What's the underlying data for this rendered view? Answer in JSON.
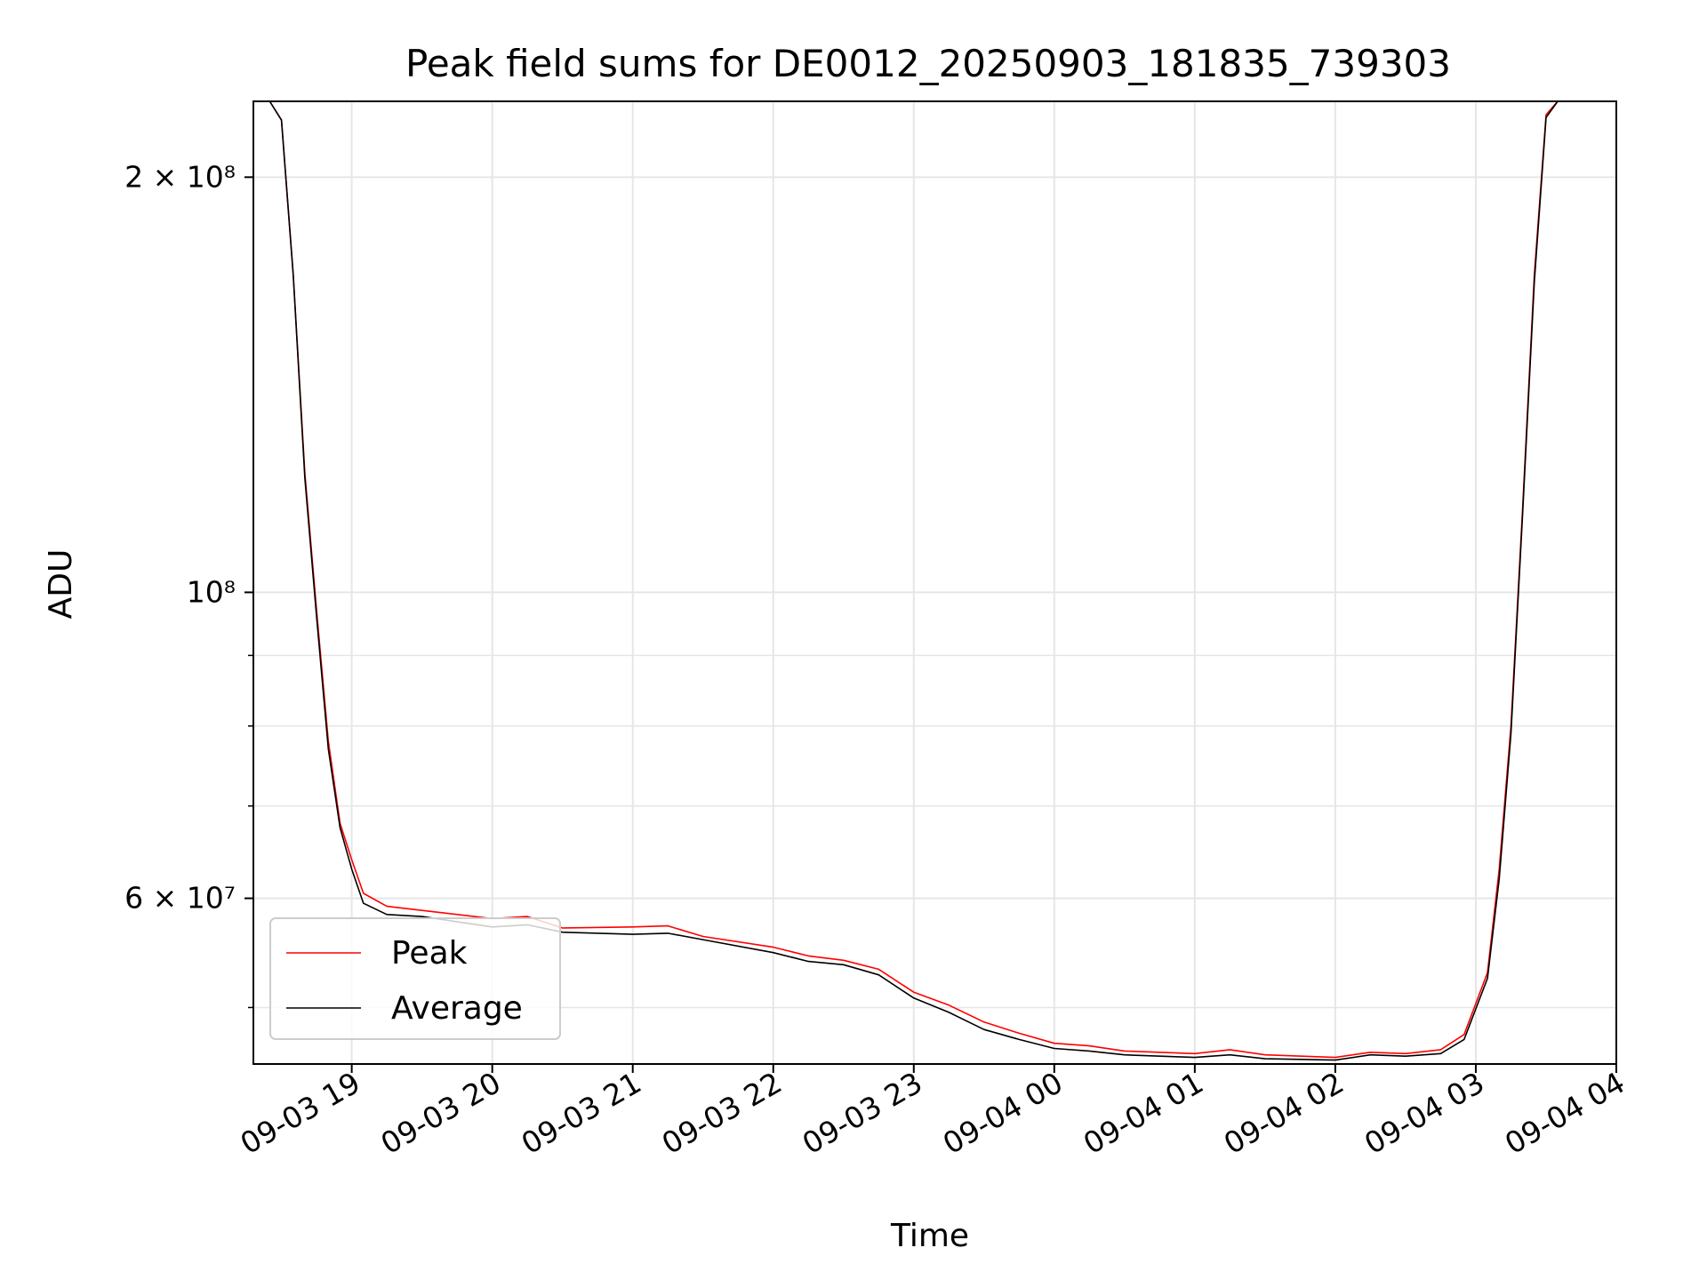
{
  "colors": {
    "peak": "#ff0000",
    "average": "#000000",
    "grid": "#e6e6e6",
    "axis": "#000000",
    "legend_border": "#cccccc"
  },
  "chart_data": {
    "type": "line",
    "title": "Peak field sums for DE0012_20250903_181835_739303",
    "xlabel": "Time",
    "ylabel": "ADU",
    "yscale": "log",
    "xlim": [
      "2025-09-03 18:18",
      "2025-09-04 04:00"
    ],
    "ylim": [
      45500000,
      227000000
    ],
    "grid": true,
    "legend_position": "lower-left",
    "x_ticks": [
      {
        "t": "2025-09-03 19:00",
        "label": "09-03 19"
      },
      {
        "t": "2025-09-03 20:00",
        "label": "09-03 20"
      },
      {
        "t": "2025-09-03 21:00",
        "label": "09-03 21"
      },
      {
        "t": "2025-09-03 22:00",
        "label": "09-03 22"
      },
      {
        "t": "2025-09-03 23:00",
        "label": "09-03 23"
      },
      {
        "t": "2025-09-04 00:00",
        "label": "09-04 00"
      },
      {
        "t": "2025-09-04 01:00",
        "label": "09-04 01"
      },
      {
        "t": "2025-09-04 02:00",
        "label": "09-04 02"
      },
      {
        "t": "2025-09-04 03:00",
        "label": "09-04 03"
      },
      {
        "t": "2025-09-04 04:00",
        "label": "09-04 04"
      }
    ],
    "y_ticks": [
      {
        "value": 60000000,
        "label": "6 × 10⁷"
      },
      {
        "value": 100000000,
        "label": "10⁸"
      },
      {
        "value": 200000000,
        "label": "2 × 10⁸"
      }
    ],
    "y_minor_ticks": [
      50000000,
      70000000,
      80000000,
      90000000
    ],
    "series": [
      {
        "name": "Peak",
        "color": "#ff0000",
        "points": [
          [
            "2025-09-03 18:18",
            227000000
          ],
          [
            "2025-09-03 18:25",
            227000000
          ],
          [
            "2025-09-03 18:30",
            220000000
          ],
          [
            "2025-09-03 18:35",
            170000000
          ],
          [
            "2025-09-03 18:40",
            122000000
          ],
          [
            "2025-09-03 18:45",
            97000000
          ],
          [
            "2025-09-03 18:50",
            78000000
          ],
          [
            "2025-09-03 18:55",
            68000000
          ],
          [
            "2025-09-03 19:00",
            64000000
          ],
          [
            "2025-09-03 19:05",
            60500000
          ],
          [
            "2025-09-03 19:15",
            59200000
          ],
          [
            "2025-09-03 19:30",
            58800000
          ],
          [
            "2025-09-03 20:00",
            58000000
          ],
          [
            "2025-09-03 20:15",
            58200000
          ],
          [
            "2025-09-03 20:30",
            57100000
          ],
          [
            "2025-09-03 21:00",
            57200000
          ],
          [
            "2025-09-03 21:15",
            57300000
          ],
          [
            "2025-09-03 21:30",
            56300000
          ],
          [
            "2025-09-03 22:00",
            55300000
          ],
          [
            "2025-09-03 22:15",
            54500000
          ],
          [
            "2025-09-03 22:30",
            54100000
          ],
          [
            "2025-09-03 22:45",
            53300000
          ],
          [
            "2025-09-03 23:00",
            51300000
          ],
          [
            "2025-09-03 23:15",
            50200000
          ],
          [
            "2025-09-03 23:30",
            48800000
          ],
          [
            "2025-09-03 23:45",
            47900000
          ],
          [
            "2025-09-04 00:00",
            47100000
          ],
          [
            "2025-09-04 00:15",
            46900000
          ],
          [
            "2025-09-04 00:30",
            46500000
          ],
          [
            "2025-09-04 01:00",
            46300000
          ],
          [
            "2025-09-04 01:15",
            46600000
          ],
          [
            "2025-09-04 01:30",
            46200000
          ],
          [
            "2025-09-04 02:00",
            46000000
          ],
          [
            "2025-09-04 02:15",
            46400000
          ],
          [
            "2025-09-04 02:30",
            46300000
          ],
          [
            "2025-09-04 02:45",
            46600000
          ],
          [
            "2025-09-04 02:55",
            47800000
          ],
          [
            "2025-09-04 03:05",
            53000000
          ],
          [
            "2025-09-04 03:10",
            63000000
          ],
          [
            "2025-09-04 03:15",
            80000000
          ],
          [
            "2025-09-04 03:20",
            115000000
          ],
          [
            "2025-09-04 03:25",
            170000000
          ],
          [
            "2025-09-04 03:30",
            222000000
          ],
          [
            "2025-09-04 03:35",
            227000000
          ],
          [
            "2025-09-04 04:00",
            227000000
          ]
        ]
      },
      {
        "name": "Average",
        "color": "#000000",
        "points": [
          [
            "2025-09-03 18:18",
            227000000
          ],
          [
            "2025-09-03 18:25",
            227000000
          ],
          [
            "2025-09-03 18:30",
            220000000
          ],
          [
            "2025-09-03 18:35",
            170000000
          ],
          [
            "2025-09-03 18:40",
            121000000
          ],
          [
            "2025-09-03 18:45",
            96000000
          ],
          [
            "2025-09-03 18:50",
            77000000
          ],
          [
            "2025-09-03 18:55",
            67500000
          ],
          [
            "2025-09-03 19:00",
            63000000
          ],
          [
            "2025-09-03 19:05",
            59500000
          ],
          [
            "2025-09-03 19:15",
            58400000
          ],
          [
            "2025-09-03 19:30",
            58200000
          ],
          [
            "2025-09-03 20:00",
            57200000
          ],
          [
            "2025-09-03 20:15",
            57400000
          ],
          [
            "2025-09-03 20:30",
            56700000
          ],
          [
            "2025-09-03 21:00",
            56500000
          ],
          [
            "2025-09-03 21:15",
            56600000
          ],
          [
            "2025-09-03 21:30",
            56000000
          ],
          [
            "2025-09-03 22:00",
            54800000
          ],
          [
            "2025-09-03 22:15",
            54000000
          ],
          [
            "2025-09-03 22:30",
            53700000
          ],
          [
            "2025-09-03 22:45",
            52800000
          ],
          [
            "2025-09-03 23:00",
            50800000
          ],
          [
            "2025-09-03 23:15",
            49600000
          ],
          [
            "2025-09-03 23:30",
            48200000
          ],
          [
            "2025-09-03 23:45",
            47400000
          ],
          [
            "2025-09-04 00:00",
            46700000
          ],
          [
            "2025-09-04 00:15",
            46500000
          ],
          [
            "2025-09-04 00:30",
            46200000
          ],
          [
            "2025-09-04 01:00",
            46000000
          ],
          [
            "2025-09-04 01:15",
            46200000
          ],
          [
            "2025-09-04 01:30",
            45900000
          ],
          [
            "2025-09-04 02:00",
            45800000
          ],
          [
            "2025-09-04 02:15",
            46200000
          ],
          [
            "2025-09-04 02:30",
            46100000
          ],
          [
            "2025-09-04 02:45",
            46300000
          ],
          [
            "2025-09-04 02:55",
            47400000
          ],
          [
            "2025-09-04 03:05",
            52500000
          ],
          [
            "2025-09-04 03:10",
            62000000
          ],
          [
            "2025-09-04 03:15",
            79000000
          ],
          [
            "2025-09-04 03:20",
            114000000
          ],
          [
            "2025-09-04 03:25",
            168000000
          ],
          [
            "2025-09-04 03:30",
            221000000
          ],
          [
            "2025-09-04 03:35",
            227000000
          ],
          [
            "2025-09-04 04:00",
            227000000
          ]
        ]
      }
    ]
  }
}
